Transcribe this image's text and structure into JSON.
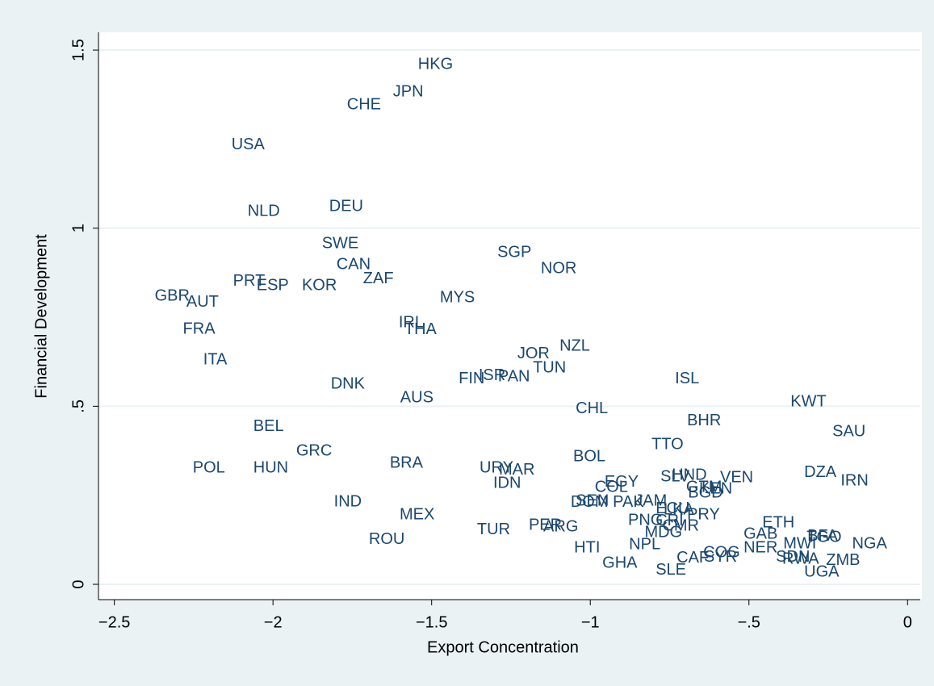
{
  "chart_data": {
    "type": "scatter",
    "x_label": "Export Concentration",
    "y_label": "Financial Development",
    "labels": [
      "HKG",
      "JPN",
      "CHE",
      "USA",
      "NLD",
      "DEU",
      "SWE",
      "CAN",
      "SGP",
      "NOR",
      "ZAF",
      "PRT",
      "ESP",
      "KOR",
      "GBR",
      "AUT",
      "MYS",
      "FRA",
      "IRL",
      "THA",
      "NZL",
      "JOR",
      "TUN",
      "ITA",
      "ISR",
      "PAN",
      "FIN",
      "ISL",
      "DNK",
      "AUS",
      "KWT",
      "CHL",
      "BHR",
      "BEL",
      "SAU",
      "TTO",
      "GRC",
      "BOL",
      "BRA",
      "POL",
      "HUN",
      "URY",
      "MAR",
      "IDN",
      "DZA",
      "IRN",
      "SLV",
      "HND",
      "VEN",
      "KEN",
      "GTM",
      "BGD",
      "EGY",
      "COL",
      "IND",
      "SEN",
      "DOM",
      "PAK",
      "JAM",
      "ECU",
      "LKA",
      "PRY",
      "PNG",
      "CRI",
      "CMR",
      "MEX",
      "ETH",
      "GAB",
      "MDG",
      "BFA",
      "TGO",
      "NGA",
      "MWI",
      "NER",
      "PER",
      "ARG",
      "TUR",
      "ROU",
      "HTI",
      "NPL",
      "COG",
      "SYR",
      "CAF",
      "RWA",
      "SDN",
      "ZMB",
      "UGA",
      "GHA",
      "SLE"
    ],
    "x": [
      -1.543,
      -1.622,
      -1.767,
      -2.131,
      -2.08,
      -1.823,
      -1.846,
      -1.8,
      -1.293,
      -1.156,
      -1.716,
      -2.126,
      -2.052,
      -1.909,
      -2.373,
      -2.273,
      -1.474,
      -2.284,
      -1.604,
      -1.586,
      -1.097,
      -1.23,
      -1.181,
      -2.22,
      -1.352,
      -1.291,
      -1.415,
      -0.733,
      -1.818,
      -1.599,
      -0.369,
      -1.046,
      -0.695,
      -2.062,
      -0.237,
      -0.807,
      -1.927,
      -1.054,
      -1.632,
      -2.253,
      -2.062,
      -1.349,
      -1.288,
      -1.306,
      -0.326,
      -0.211,
      -0.779,
      -0.743,
      -0.591,
      -0.657,
      -0.698,
      -0.692,
      -0.955,
      -0.986,
      -1.808,
      -1.046,
      -1.062,
      -0.929,
      -0.86,
      -0.794,
      -0.769,
      -0.695,
      -0.881,
      -0.794,
      -0.773,
      -1.601,
      -0.458,
      -0.517,
      -0.829,
      -0.316,
      -0.318,
      -0.175,
      -0.392,
      -0.517,
      -1.194,
      -1.148,
      -1.357,
      -1.698,
      -1.051,
      -0.878,
      -0.644,
      -0.642,
      -0.728,
      -0.395,
      -0.415,
      -0.257,
      -0.326,
      -0.962,
      -0.794
    ],
    "values": [
      1.459,
      1.382,
      1.346,
      1.233,
      1.047,
      1.06,
      0.956,
      0.897,
      0.931,
      0.886,
      0.857,
      0.85,
      0.838,
      0.838,
      0.809,
      0.791,
      0.804,
      0.716,
      0.734,
      0.714,
      0.668,
      0.646,
      0.607,
      0.63,
      0.585,
      0.582,
      0.576,
      0.576,
      0.562,
      0.523,
      0.512,
      0.492,
      0.458,
      0.442,
      0.428,
      0.392,
      0.374,
      0.358,
      0.34,
      0.326,
      0.326,
      0.326,
      0.32,
      0.283,
      0.313,
      0.29,
      0.301,
      0.306,
      0.299,
      0.267,
      0.272,
      0.256,
      0.286,
      0.272,
      0.231,
      0.233,
      0.229,
      0.229,
      0.233,
      0.211,
      0.208,
      0.195,
      0.179,
      0.177,
      0.163,
      0.195,
      0.172,
      0.14,
      0.145,
      0.134,
      0.131,
      0.113,
      0.113,
      0.102,
      0.165,
      0.161,
      0.152,
      0.125,
      0.102,
      0.111,
      0.088,
      0.075,
      0.073,
      0.07,
      0.075,
      0.066,
      0.034,
      0.059,
      0.039
    ],
    "color": "#1a476f",
    "xlim": [
      -2.55,
      0.04
    ],
    "ylim": [
      -0.043,
      1.55
    ],
    "xticks": [
      {
        "value": -2.5,
        "label": "−2.5"
      },
      {
        "value": -2,
        "label": "−2"
      },
      {
        "value": -1.5,
        "label": "−1.5"
      },
      {
        "value": -1,
        "label": "−1"
      },
      {
        "value": -0.5,
        "label": "−.5"
      },
      0
    ],
    "yticks": [
      0,
      {
        "value": 0.5,
        "label": ".5"
      },
      1,
      1.5
    ],
    "grid": true
  }
}
